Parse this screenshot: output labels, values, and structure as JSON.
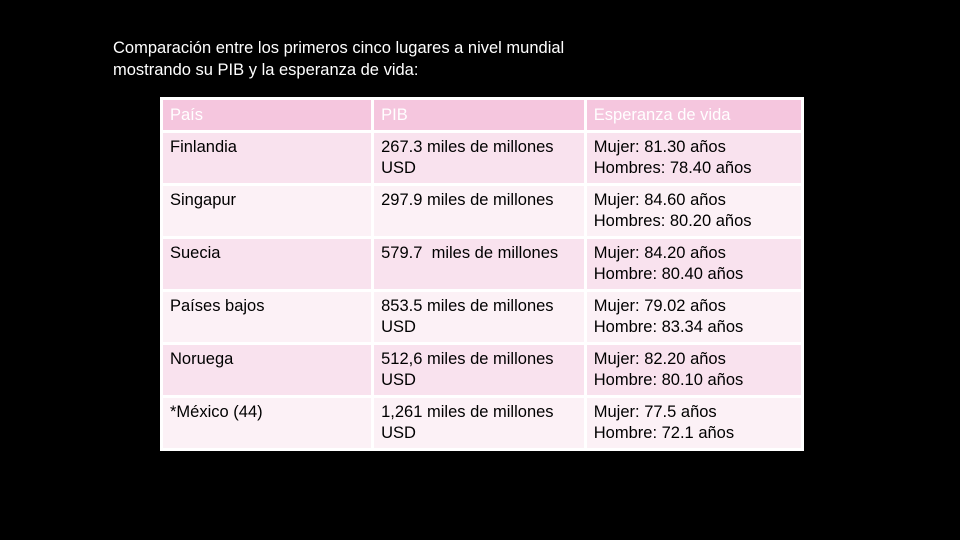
{
  "intro": {
    "line1": "Comparación entre los primeros cinco lugares a nivel mundial",
    "line2": "mostrando su PIB y la esperanza de vida:"
  },
  "table": {
    "headers": [
      "País",
      "PIB",
      "Esperanza de vida"
    ],
    "rows": [
      {
        "country": "Finlandia",
        "pib": [
          "267.3 miles de millones",
          "USD"
        ],
        "life": [
          "Mujer: 81.30 años",
          "Hombres: 78.40 años"
        ]
      },
      {
        "country": "Singapur",
        "pib": [
          "297.9 miles de millones",
          ""
        ],
        "life": [
          "Mujer: 84.60 años",
          "Hombres: 80.20 años"
        ]
      },
      {
        "country": "Suecia",
        "pib": [
          "579.7  miles de millones",
          ""
        ],
        "life": [
          "Mujer: 84.20 años",
          "Hombre: 80.40 años"
        ]
      },
      {
        "country": "Países bajos",
        "pib": [
          "853.5 miles de millones",
          "USD"
        ],
        "life": [
          "Mujer: 79.02 años",
          "Hombre: 83.34 años"
        ]
      },
      {
        "country": "Noruega",
        "pib": [
          "512,6 miles de millones",
          "USD"
        ],
        "life": [
          "Mujer: 82.20 años",
          "Hombre: 80.10 años"
        ]
      },
      {
        "country": "*México (44)",
        "pib": [
          "1,261 miles de millones",
          "USD"
        ],
        "life": [
          "Mujer: 77.5 años",
          "Hombre: 72.1 años"
        ]
      }
    ]
  },
  "colors": {
    "background": "#000000",
    "header_fill": "#f5c6de",
    "row_fill_odd": "#f9e2ee",
    "row_fill_even": "#fcf1f6"
  }
}
